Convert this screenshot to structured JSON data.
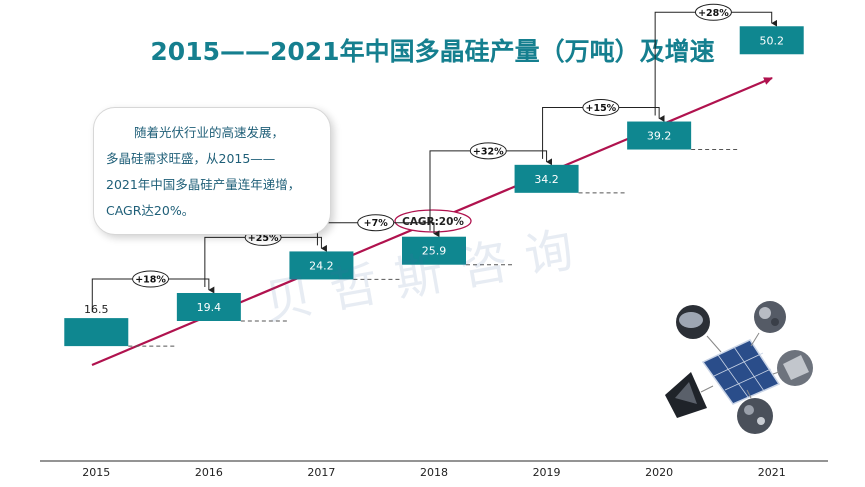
{
  "title": "2015——2021年中国多晶硅产量（万吨）及增速",
  "note": {
    "line1": "随着光伏行业的高速发展，",
    "line2": "多晶硅需求旺盛，从2015——",
    "line3": "2021年中国多晶硅产量连年递增，",
    "line4": "CAGR达20%。"
  },
  "watermark": "贝哲斯咨询",
  "chart_data": {
    "type": "bar",
    "title": "2015——2021年中国多晶硅产量（万吨）及增速",
    "unit": "万吨",
    "categories": [
      "2015",
      "2016",
      "2017",
      "2018",
      "2019",
      "2020",
      "2021"
    ],
    "values": [
      16.5,
      19.4,
      24.2,
      25.9,
      34.2,
      39.2,
      50.2
    ],
    "value_labels": [
      "16.5",
      "19.4",
      "24.2",
      "25.9",
      "34.2",
      "39.2",
      "50.2"
    ],
    "growth": [
      "+18%",
      "+25%",
      "+7%",
      "+32%",
      "+15%",
      "+28%"
    ],
    "cagr_label": "CAGR:20%",
    "bar_color": "#0f8790",
    "arrow_color": "#b0124e"
  }
}
